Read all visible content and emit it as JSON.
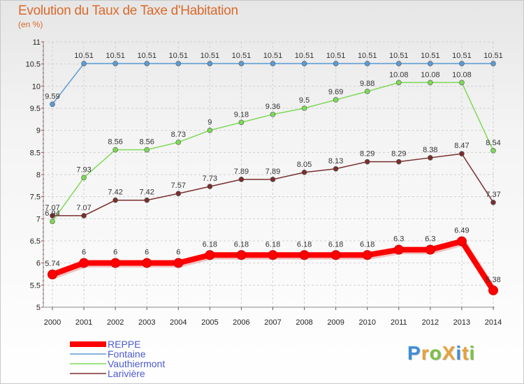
{
  "title": "Evolution du Taux de Taxe d'Habitation",
  "subtitle": "(en %)",
  "logo": {
    "text": "ProXiti",
    "colors": [
      "#3b8ed8",
      "#e8a23a",
      "#7ac143",
      "#e8a23a",
      "#3b8ed8",
      "#e8a23a",
      "#7ac143"
    ]
  },
  "chart_data": {
    "type": "line",
    "title": "Evolution du Taux de Taxe d'Habitation",
    "subtitle": "(en %)",
    "x": [
      2000,
      2001,
      2002,
      2003,
      2004,
      2005,
      2006,
      2007,
      2008,
      2009,
      2010,
      2011,
      2012,
      2013,
      2014
    ],
    "x_tick_labels": [
      "2000",
      "2001",
      "2002",
      "2003",
      "2004",
      "2005",
      "2006",
      "2007",
      "2008",
      "2009",
      "2010",
      "2011",
      "2012",
      "2013",
      "2014"
    ],
    "ylim": [
      5,
      11
    ],
    "y_ticks": [
      5,
      5.5,
      6,
      6.5,
      7,
      7.5,
      8,
      8.5,
      9,
      9.5,
      10,
      10.5,
      11
    ],
    "y_tick_labels": [
      "5",
      "5.5",
      "6",
      "6.5",
      "7",
      "7.5",
      "8",
      "8.5",
      "9",
      "9.5",
      "10",
      "10.5",
      "11"
    ],
    "grid": true,
    "legend_position": "bottom-left",
    "series": [
      {
        "name": "REPPE",
        "color": "#ff0000",
        "values": [
          5.74,
          6,
          6,
          6,
          6,
          6.18,
          6.18,
          6.18,
          6.18,
          6.18,
          6.18,
          6.3,
          6.3,
          6.49,
          5.38
        ],
        "labels": [
          "5.74",
          "6",
          "6",
          "6",
          "6",
          "6.18",
          "6.18",
          "6.18",
          "6.18",
          "6.18",
          "6.18",
          "6.3",
          "6.3",
          "6.49",
          "5.38"
        ]
      },
      {
        "name": "Fontaine",
        "color": "#5b9bd5",
        "values": [
          9.59,
          10.51,
          10.51,
          10.51,
          10.51,
          10.51,
          10.51,
          10.51,
          10.51,
          10.51,
          10.51,
          10.51,
          10.51,
          10.51,
          10.51
        ],
        "labels": [
          "9.59",
          "10.51",
          "10.51",
          "10.51",
          "10.51",
          "10.51",
          "10.51",
          "10.51",
          "10.51",
          "10.51",
          "10.51",
          "10.51",
          "10.51",
          "10.51",
          "10.51"
        ]
      },
      {
        "name": "Vauthiermont",
        "color": "#7ed957",
        "values": [
          6.94,
          7.93,
          8.56,
          8.56,
          8.73,
          9,
          9.18,
          9.36,
          9.5,
          9.69,
          9.88,
          10.08,
          10.08,
          10.08,
          8.54
        ],
        "labels": [
          "6.94",
          "7.93",
          "8.56",
          "8.56",
          "8.73",
          "9",
          "9.18",
          "9.36",
          "9.5",
          "9.69",
          "9.88",
          "10.08",
          "10.08",
          "10.08",
          "8.54"
        ]
      },
      {
        "name": "Larivière",
        "color": "#7a2e2e",
        "values": [
          7.07,
          7.07,
          7.42,
          7.42,
          7.57,
          7.73,
          7.89,
          7.89,
          8.05,
          8.13,
          8.29,
          8.29,
          8.38,
          8.47,
          7.37
        ],
        "labels": [
          "7.07",
          "7.07",
          "7.42",
          "7.42",
          "7.57",
          "7.73",
          "7.89",
          "7.89",
          "8.05",
          "8.13",
          "8.29",
          "8.29",
          "8.38",
          "8.47",
          "7.37"
        ]
      }
    ]
  }
}
